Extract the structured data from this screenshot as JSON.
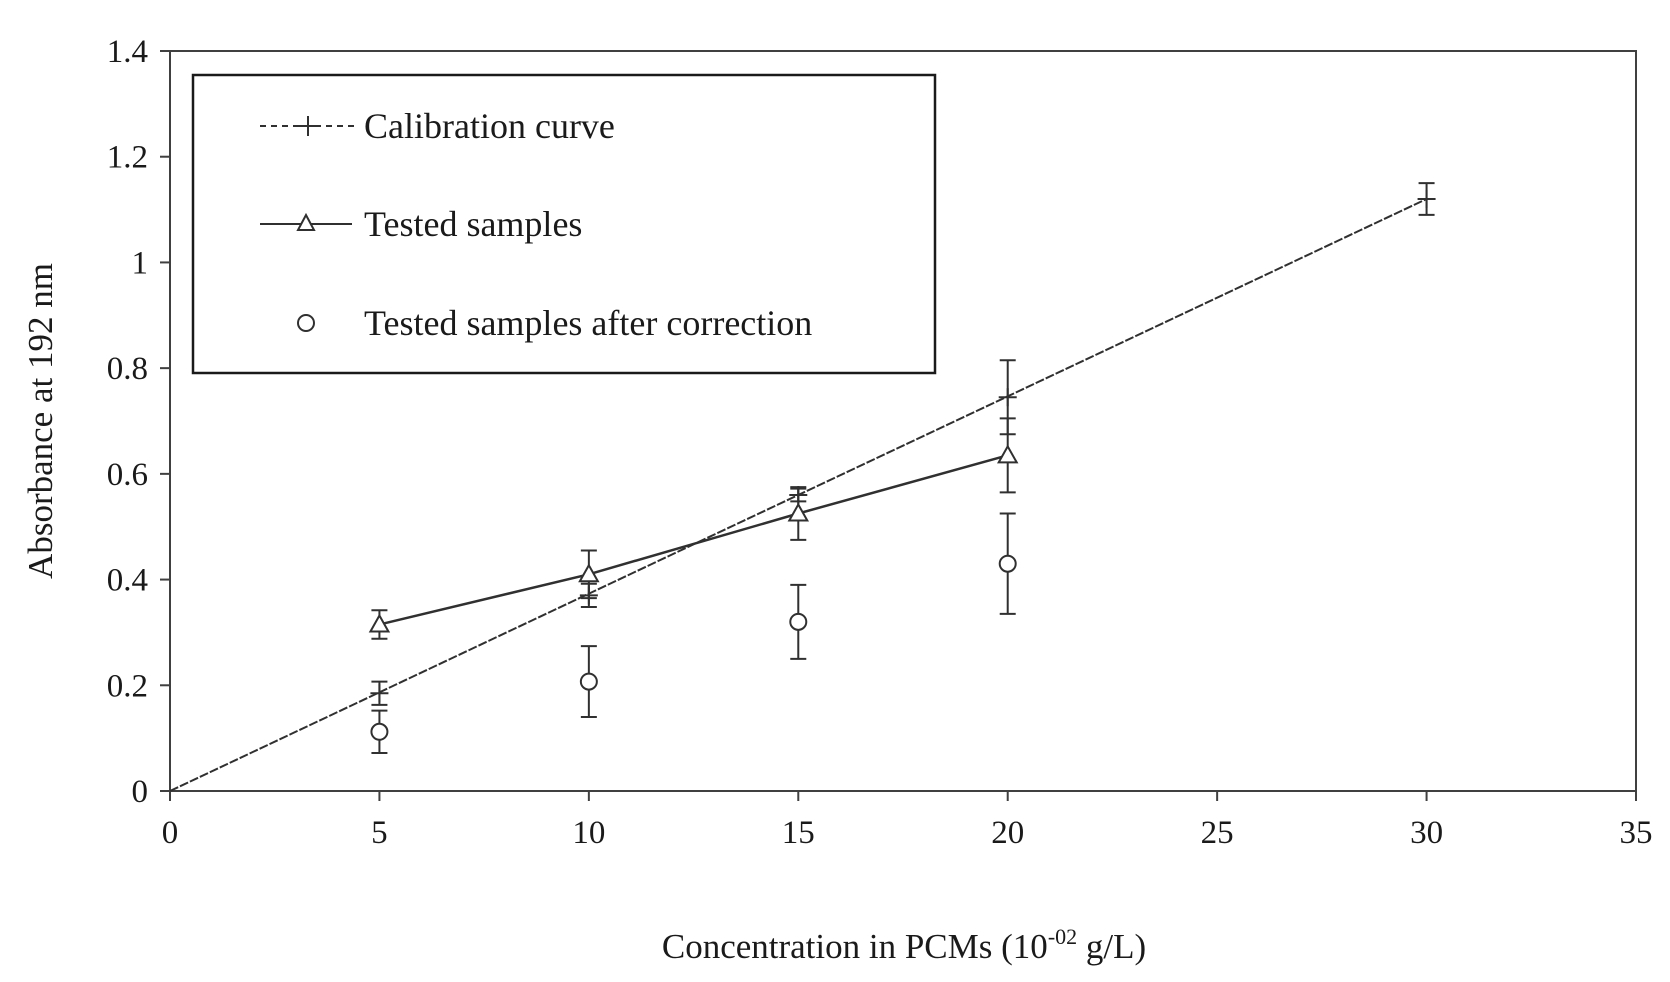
{
  "chart_data": {
    "type": "scatter",
    "title": "",
    "xlabel": "Concentration in PCMs (10",
    "xlabel_sup": "-02",
    "xlabel_tail": " g/L)",
    "ylabel": "Absorbance at 192 nm",
    "xlim": [
      0,
      35
    ],
    "ylim": [
      0,
      1.4
    ],
    "xticks": [
      0,
      5,
      10,
      15,
      20,
      25,
      30,
      35
    ],
    "yticks": [
      0,
      0.2,
      0.4,
      0.6,
      0.8,
      1.0,
      1.2,
      1.4
    ],
    "xtick_labels": [
      "0",
      "5",
      "10",
      "15",
      "20",
      "25",
      "30",
      "35"
    ],
    "ytick_labels": [
      "0",
      "0.2",
      "0.4",
      "0.6",
      "0.8",
      "1",
      "1.2",
      "1.4"
    ],
    "grid": false,
    "legend_position": "top-left",
    "series": [
      {
        "name": "Calibration curve",
        "marker": "plus",
        "line": "dashed",
        "fit_line": {
          "x": [
            0,
            30
          ],
          "y": [
            0,
            1.12
          ]
        },
        "x": [
          5,
          10,
          15,
          20,
          30
        ],
        "y": [
          0.185,
          0.37,
          0.56,
          0.745,
          1.12
        ],
        "err": [
          0.022,
          0.022,
          0.012,
          0.07,
          0.03
        ]
      },
      {
        "name": "Tested samples",
        "marker": "triangle",
        "line": "solid",
        "x": [
          5,
          10,
          15,
          20
        ],
        "y": [
          0.315,
          0.41,
          0.525,
          0.635
        ],
        "err": [
          0.027,
          0.045,
          0.05,
          0.07
        ]
      },
      {
        "name": "Tested samples after correction",
        "marker": "circle",
        "line": "none",
        "x": [
          5,
          10,
          15,
          20
        ],
        "y": [
          0.112,
          0.207,
          0.32,
          0.43
        ],
        "err": [
          0.04,
          0.067,
          0.07,
          0.095
        ]
      }
    ],
    "colors": {
      "axis": "#404040",
      "series": "#303030",
      "frame": "#1a1a1a"
    }
  }
}
